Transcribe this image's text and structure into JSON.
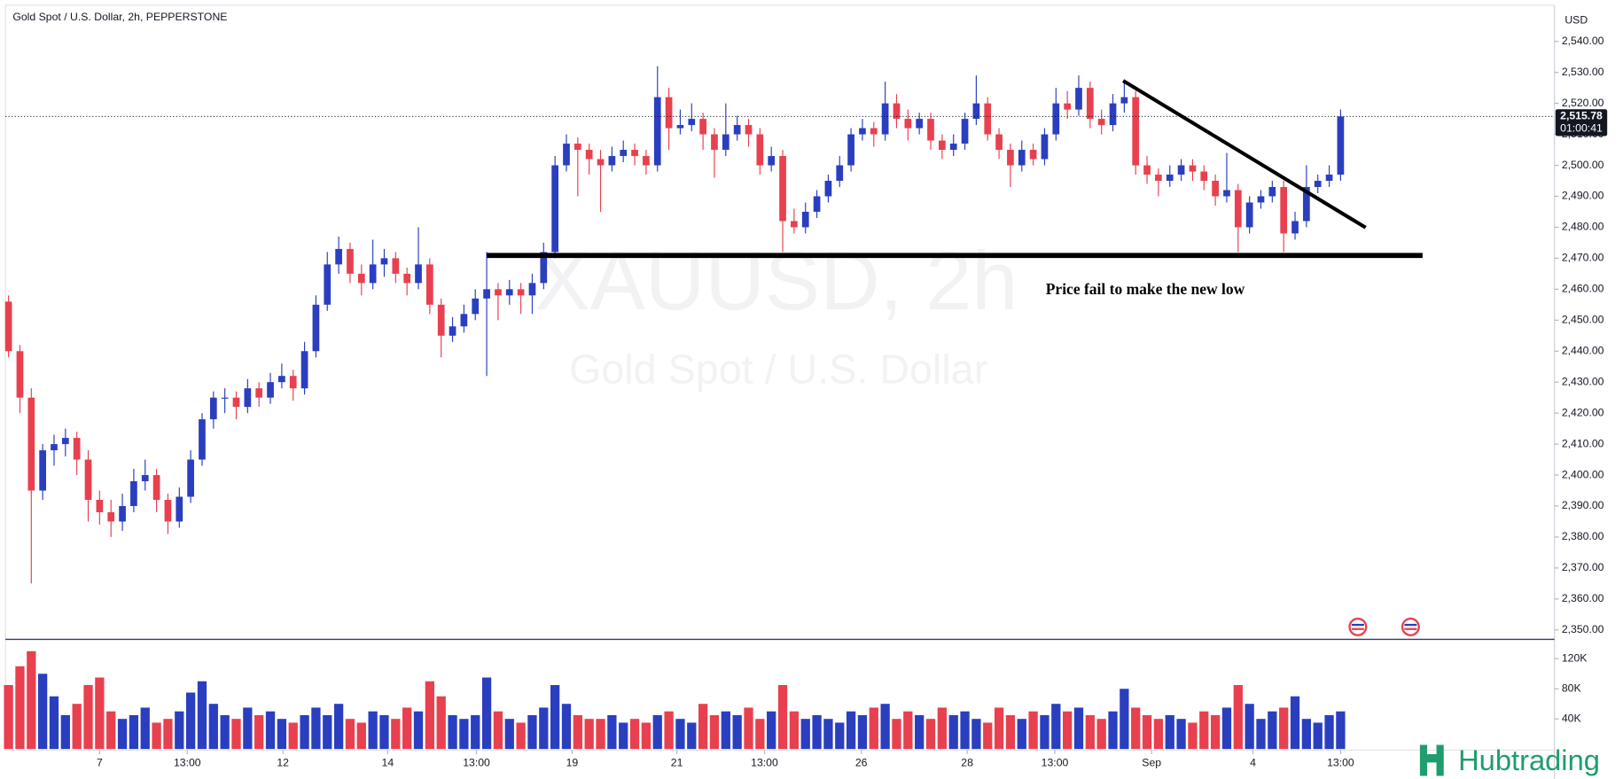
{
  "chart_data": {
    "type": "candlestick",
    "title": "Gold Spot / U.S. Dollar, 2h, PEPPERSTONE",
    "watermark": "XAUUSD, 2h",
    "watermark_subtitle": "Gold Spot / U.S. Dollar",
    "currency": "USD",
    "up_color": "#2a3ec0",
    "down_color": "#e8404e",
    "xlim": [
      -0.27,
      135.6
    ],
    "xticks": [
      {
        "value": 8.0,
        "label": "7"
      },
      {
        "value": 15.7,
        "label": "13:00"
      },
      {
        "value": 24.1,
        "label": "12"
      },
      {
        "value": 33.3,
        "label": "14"
      },
      {
        "value": 41.1,
        "label": "13:00"
      },
      {
        "value": 49.5,
        "label": "19"
      },
      {
        "value": 58.7,
        "label": "21"
      },
      {
        "value": 66.4,
        "label": "13:00"
      },
      {
        "value": 74.9,
        "label": "26"
      },
      {
        "value": 84.2,
        "label": "28"
      },
      {
        "value": 91.9,
        "label": "13:00"
      },
      {
        "value": 100.4,
        "label": "Sep"
      },
      {
        "value": 109.3,
        "label": "4"
      },
      {
        "value": 117.0,
        "label": "13:00"
      }
    ],
    "ylim": [
      2347.3,
      2551.7
    ],
    "yticks": [
      {
        "value": 2350,
        "label": "2,350.00"
      },
      {
        "value": 2360,
        "label": "2,360.00"
      },
      {
        "value": 2370,
        "label": "2,370.00"
      },
      {
        "value": 2380,
        "label": "2,380.00"
      },
      {
        "value": 2390,
        "label": "2,390.00"
      },
      {
        "value": 2400,
        "label": "2,400.00"
      },
      {
        "value": 2410,
        "label": "2,410.00"
      },
      {
        "value": 2420,
        "label": "2,420.00"
      },
      {
        "value": 2430,
        "label": "2,430.00"
      },
      {
        "value": 2440,
        "label": "2,440.00"
      },
      {
        "value": 2450,
        "label": "2,450.00"
      },
      {
        "value": 2460,
        "label": "2,460.00"
      },
      {
        "value": 2470,
        "label": "2,470.00"
      },
      {
        "value": 2480,
        "label": "2,480.00"
      },
      {
        "value": 2490,
        "label": "2,490.00"
      },
      {
        "value": 2500,
        "label": "2,500.00"
      },
      {
        "value": 2510,
        "label": "2,510.00"
      },
      {
        "value": 2520,
        "label": "2,520.00"
      },
      {
        "value": 2530,
        "label": "2,530.00"
      },
      {
        "value": 2540,
        "label": "2,540.00"
      }
    ],
    "ohlc": [
      [
        2456,
        2458,
        2438,
        2440
      ],
      [
        2440,
        2442,
        2420,
        2425
      ],
      [
        2425,
        2428,
        2365,
        2395
      ],
      [
        2395,
        2410,
        2392,
        2408
      ],
      [
        2408,
        2413,
        2403,
        2410
      ],
      [
        2410,
        2415,
        2406,
        2412
      ],
      [
        2412,
        2414,
        2400,
        2405
      ],
      [
        2405,
        2408,
        2385,
        2392
      ],
      [
        2392,
        2395,
        2384,
        2388
      ],
      [
        2388,
        2392,
        2380,
        2385
      ],
      [
        2385,
        2394,
        2382,
        2390
      ],
      [
        2390,
        2402,
        2388,
        2398
      ],
      [
        2398,
        2405,
        2395,
        2400
      ],
      [
        2400,
        2402,
        2388,
        2392
      ],
      [
        2392,
        2394,
        2381,
        2385
      ],
      [
        2385,
        2396,
        2383,
        2393
      ],
      [
        2393,
        2408,
        2391,
        2405
      ],
      [
        2405,
        2420,
        2403,
        2418
      ],
      [
        2418,
        2427,
        2415,
        2425
      ],
      [
        2425,
        2428,
        2420,
        2425
      ],
      [
        2425,
        2427,
        2418,
        2422
      ],
      [
        2422,
        2431,
        2420,
        2428
      ],
      [
        2428,
        2430,
        2422,
        2425
      ],
      [
        2425,
        2433,
        2423,
        2430
      ],
      [
        2430,
        2436,
        2428,
        2432
      ],
      [
        2432,
        2434,
        2424,
        2428
      ],
      [
        2428,
        2443,
        2426,
        2440
      ],
      [
        2440,
        2458,
        2438,
        2455
      ],
      [
        2455,
        2472,
        2453,
        2468
      ],
      [
        2468,
        2477,
        2465,
        2473
      ],
      [
        2473,
        2475,
        2462,
        2465
      ],
      [
        2465,
        2468,
        2458,
        2462
      ],
      [
        2462,
        2476,
        2460,
        2468
      ],
      [
        2468,
        2473,
        2464,
        2470
      ],
      [
        2470,
        2472,
        2462,
        2465
      ],
      [
        2465,
        2467,
        2458,
        2462
      ],
      [
        2462,
        2480,
        2460,
        2468
      ],
      [
        2468,
        2470,
        2452,
        2455
      ],
      [
        2455,
        2457,
        2438,
        2445
      ],
      [
        2445,
        2451,
        2443,
        2448
      ],
      [
        2448,
        2455,
        2446,
        2452
      ],
      [
        2452,
        2460,
        2450,
        2457
      ],
      [
        2457,
        2472,
        2432,
        2460
      ],
      [
        2460,
        2462,
        2450,
        2458
      ],
      [
        2458,
        2463,
        2455,
        2460
      ],
      [
        2460,
        2462,
        2452,
        2458
      ],
      [
        2458,
        2465,
        2452,
        2462
      ],
      [
        2462,
        2475,
        2460,
        2472
      ],
      [
        2472,
        2503,
        2470,
        2500
      ],
      [
        2500,
        2510,
        2498,
        2507
      ],
      [
        2507,
        2509,
        2490,
        2505
      ],
      [
        2505,
        2507,
        2497,
        2502
      ],
      [
        2502,
        2505,
        2485,
        2500
      ],
      [
        2500,
        2506,
        2498,
        2503
      ],
      [
        2503,
        2508,
        2501,
        2505
      ],
      [
        2505,
        2507,
        2500,
        2503
      ],
      [
        2503,
        2505,
        2497,
        2500
      ],
      [
        2500,
        2532,
        2498,
        2522
      ],
      [
        2522,
        2525,
        2505,
        2512
      ],
      [
        2512,
        2518,
        2510,
        2513
      ],
      [
        2513,
        2520,
        2511,
        2515
      ],
      [
        2515,
        2517,
        2505,
        2510
      ],
      [
        2510,
        2512,
        2496,
        2505
      ],
      [
        2505,
        2520,
        2503,
        2510
      ],
      [
        2510,
        2516,
        2508,
        2513
      ],
      [
        2513,
        2515,
        2506,
        2510
      ],
      [
        2510,
        2512,
        2497,
        2500
      ],
      [
        2500,
        2506,
        2498,
        2503
      ],
      [
        2503,
        2505,
        2472,
        2482
      ],
      [
        2482,
        2486,
        2478,
        2480
      ],
      [
        2480,
        2488,
        2478,
        2485
      ],
      [
        2485,
        2492,
        2483,
        2490
      ],
      [
        2490,
        2497,
        2488,
        2495
      ],
      [
        2495,
        2503,
        2493,
        2500
      ],
      [
        2500,
        2512,
        2498,
        2510
      ],
      [
        2510,
        2515,
        2508,
        2512
      ],
      [
        2512,
        2514,
        2506,
        2510
      ],
      [
        2510,
        2527,
        2508,
        2520
      ],
      [
        2520,
        2523,
        2512,
        2515
      ],
      [
        2515,
        2518,
        2508,
        2512
      ],
      [
        2512,
        2517,
        2510,
        2515
      ],
      [
        2515,
        2517,
        2505,
        2508
      ],
      [
        2508,
        2510,
        2502,
        2505
      ],
      [
        2505,
        2510,
        2503,
        2507
      ],
      [
        2507,
        2517,
        2505,
        2515
      ],
      [
        2515,
        2529,
        2513,
        2520
      ],
      [
        2520,
        2522,
        2508,
        2510
      ],
      [
        2510,
        2512,
        2502,
        2505
      ],
      [
        2505,
        2507,
        2493,
        2500
      ],
      [
        2500,
        2508,
        2498,
        2505
      ],
      [
        2505,
        2507,
        2500,
        2502
      ],
      [
        2502,
        2512,
        2500,
        2510
      ],
      [
        2510,
        2525,
        2508,
        2520
      ],
      [
        2520,
        2524,
        2515,
        2518
      ],
      [
        2518,
        2529,
        2516,
        2525
      ],
      [
        2525,
        2527,
        2512,
        2515
      ],
      [
        2515,
        2518,
        2510,
        2513
      ],
      [
        2513,
        2523,
        2511,
        2520
      ],
      [
        2520,
        2527,
        2517,
        2522
      ],
      [
        2522,
        2524,
        2497,
        2500
      ],
      [
        2500,
        2503,
        2494,
        2497
      ],
      [
        2497,
        2499,
        2490,
        2495
      ],
      [
        2495,
        2500,
        2493,
        2497
      ],
      [
        2497,
        2502,
        2495,
        2500
      ],
      [
        2500,
        2502,
        2495,
        2498
      ],
      [
        2498,
        2500,
        2492,
        2495
      ],
      [
        2495,
        2497,
        2487,
        2490
      ],
      [
        2490,
        2504,
        2488,
        2492
      ],
      [
        2492,
        2494,
        2472,
        2480
      ],
      [
        2480,
        2490,
        2478,
        2488
      ],
      [
        2488,
        2492,
        2486,
        2490
      ],
      [
        2490,
        2495,
        2488,
        2493
      ],
      [
        2493,
        2495,
        2472,
        2478
      ],
      [
        2478,
        2485,
        2476,
        2482
      ],
      [
        2482,
        2500,
        2480,
        2493
      ],
      [
        2493,
        2497,
        2491,
        2495
      ],
      [
        2495,
        2500,
        2493,
        2497
      ],
      [
        2497,
        2518,
        2495,
        2515.78
      ]
    ],
    "volume": {
      "ylim": [
        0,
        143000
      ],
      "yticks": [
        {
          "value": 40000,
          "label": "40K"
        },
        {
          "value": 80000,
          "label": "80K"
        },
        {
          "value": 120000,
          "label": "120K"
        }
      ],
      "values": [
        85000,
        110000,
        130000,
        100000,
        70000,
        45000,
        60000,
        85000,
        95000,
        50000,
        40000,
        45000,
        55000,
        35000,
        40000,
        50000,
        75000,
        90000,
        60000,
        45000,
        40000,
        55000,
        45000,
        50000,
        40000,
        35000,
        45000,
        55000,
        45000,
        60000,
        40000,
        35000,
        50000,
        45000,
        40000,
        55000,
        50000,
        90000,
        70000,
        45000,
        40000,
        45000,
        95000,
        50000,
        40000,
        35000,
        45000,
        55000,
        85000,
        60000,
        45000,
        40000,
        40000,
        45000,
        35000,
        40000,
        35000,
        45000,
        50000,
        40000,
        35000,
        60000,
        45000,
        50000,
        45000,
        55000,
        40000,
        50000,
        85000,
        50000,
        40000,
        45000,
        40000,
        35000,
        50000,
        45000,
        55000,
        60000,
        40000,
        50000,
        45000,
        40000,
        55000,
        45000,
        50000,
        40000,
        35000,
        55000,
        45000,
        40000,
        50000,
        45000,
        60000,
        50000,
        55000,
        45000,
        40000,
        50000,
        80000,
        55000,
        45000,
        40000,
        45000,
        40000,
        35000,
        50000,
        45000,
        55000,
        85000,
        60000,
        40000,
        50000,
        55000,
        70000,
        40000,
        35000,
        45000,
        50000
      ]
    },
    "last_price": {
      "value": 2515.78,
      "label": "2,515.78"
    },
    "countdown": "01:00:41",
    "annotations": [
      {
        "type": "line",
        "x": [
          42.0,
          124.2
        ],
        "y": [
          2470.9,
          2470.9
        ],
        "color": "#000000",
        "width": 5
      },
      {
        "type": "line",
        "x": [
          97.9,
          119.2
        ],
        "y": [
          2527.3,
          2479.9
        ],
        "color": "#000000",
        "width": 3.5
      },
      {
        "type": "text",
        "text": "Price fail to make the new low",
        "x": 91.1,
        "y": 2459.5
      }
    ]
  },
  "branding": {
    "logo": "Hubtrading"
  }
}
